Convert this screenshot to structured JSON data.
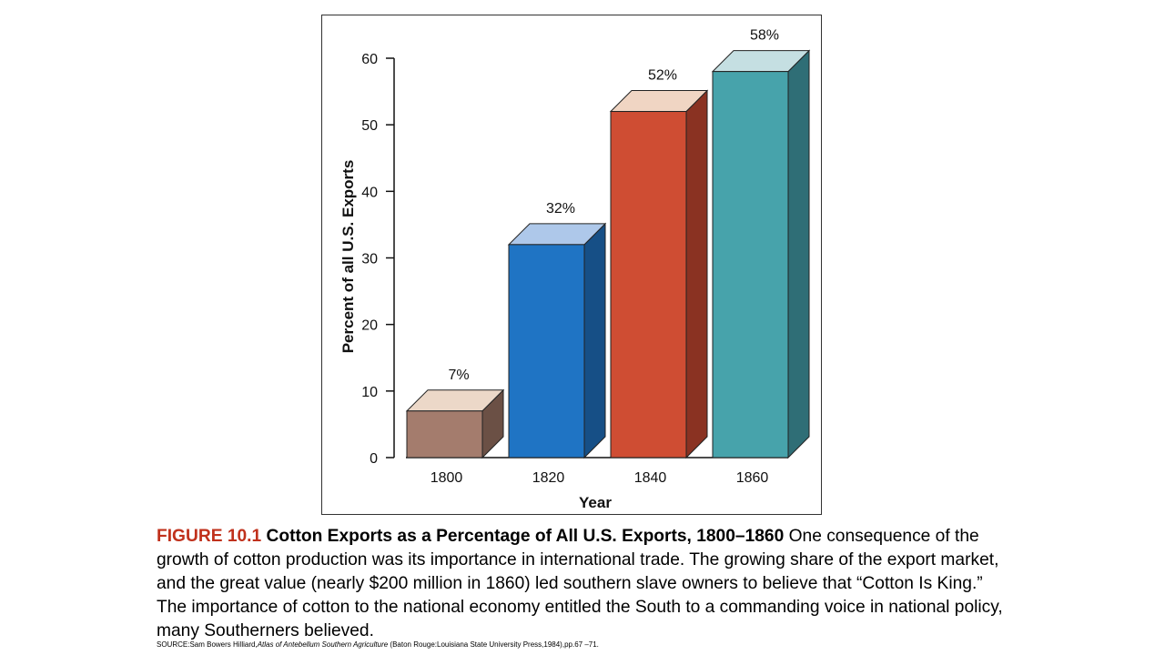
{
  "chart_data": {
    "type": "bar",
    "categories": [
      "1800",
      "1820",
      "1840",
      "1860"
    ],
    "values": [
      7,
      32,
      52,
      58
    ],
    "data_labels": [
      "7%",
      "32%",
      "52%",
      "58%"
    ],
    "xlabel": "Year",
    "ylabel": "Percent of all U.S. Exports",
    "ylim": [
      0,
      60
    ],
    "yticks": [
      0,
      10,
      20,
      30,
      40,
      50,
      60
    ],
    "grid": false,
    "legend": "none",
    "style": "3d",
    "colors": [
      {
        "front": "#a47c6d",
        "side": "#6b5045",
        "top": "#ecd8c8"
      },
      {
        "front": "#1f74c4",
        "side": "#164f86",
        "top": "#aec8ea"
      },
      {
        "front": "#cf4d33",
        "side": "#8a3222",
        "top": "#f0d5c3"
      },
      {
        "front": "#47a3ab",
        "side": "#2f6e76",
        "top": "#c5dfe2"
      }
    ]
  },
  "caption": {
    "label": "FIGURE 10.1",
    "title": "Cotton Exports as a Percentage of All U.S. Exports, 1800–1860",
    "body": "One consequence of the growth of cotton production was its importance in international trade. The growing share of the export market, and the great value (nearly $200 million in 1860) led southern slave owners to believe that “Cotton Is King.” The importance of cotton to the national economy entitled the South to a commanding voice in national policy, many Southerners believed."
  },
  "source": {
    "prefix": "SOURCE:Sam Bowers Hilliard,",
    "book": "Atlas of Antebellum Southern Agriculture",
    "suffix": " (Baton Rouge:Louisiana State University Press,1984),pp.67 –71."
  }
}
